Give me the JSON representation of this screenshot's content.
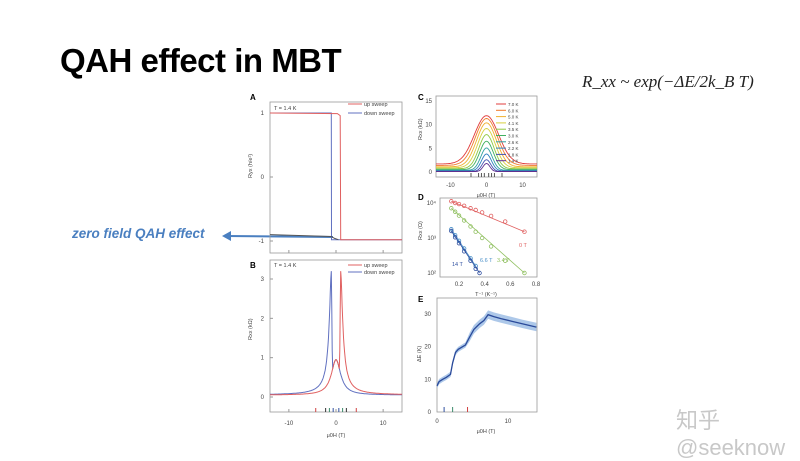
{
  "slide": {
    "title": "QAH effect in MBT",
    "formula": "R_xx ~ exp(−ΔE/2k_B T)",
    "annotation": "zero field QAH effect",
    "watermark": "知乎 @seeknow"
  },
  "chart_data": [
    {
      "panel": "A",
      "type": "line",
      "annotation": "T = 1.4 K",
      "ylabel": "Ryx (h/e²)",
      "xlabel": "μ0H (T)",
      "xlim": [
        -14,
        14
      ],
      "ylim": [
        -1.15,
        1.15
      ],
      "yticks": [
        "1",
        "0",
        "-1"
      ],
      "legend": [
        "up sweep",
        "down sweep"
      ],
      "legend_placement": "top-right",
      "series": [
        {
          "name": "up sweep",
          "color": "#e06060",
          "switch_field": 1.0
        },
        {
          "name": "down sweep",
          "color": "#6070c0",
          "switch_field": -1.0
        }
      ]
    },
    {
      "panel": "B",
      "type": "line",
      "annotation": "T = 1.4 K",
      "ylabel": "Rxx (kΩ)",
      "xlabel": "μ0H (T)",
      "xlim": [
        -14,
        14
      ],
      "ylim": [
        -0.4,
        3.4
      ],
      "yticks": [
        "3",
        "2",
        "1",
        "0"
      ],
      "xticks": [
        "-10",
        "0",
        "10"
      ],
      "legend": [
        "up sweep",
        "down sweep"
      ],
      "series": [
        {
          "name": "up sweep",
          "color": "#e06060",
          "peak_field": 1.0,
          "peak": 3.2
        },
        {
          "name": "down sweep",
          "color": "#6070c0",
          "peak_field": -1.0,
          "peak": 3.2
        }
      ]
    },
    {
      "panel": "C",
      "type": "line",
      "ylabel": "Rxx (kΩ)",
      "xlabel": "μ0H (T)",
      "xlim": [
        -14,
        14
      ],
      "ylim": [
        -1,
        15
      ],
      "yticks": [
        "15",
        "10",
        "5",
        "0"
      ],
      "xticks": [
        "-10",
        "0",
        "10"
      ],
      "series": [
        {
          "name": "7.0 K",
          "color": "#e03c3c",
          "peak": 11.9,
          "base": 1.7,
          "width": 3.2
        },
        {
          "name": "6.0 K",
          "color": "#f07a2a",
          "peak": 11.3,
          "base": 1.4,
          "width": 2.9
        },
        {
          "name": "5.0 K",
          "color": "#f0b030",
          "peak": 10.4,
          "base": 1.1,
          "width": 2.6
        },
        {
          "name": "4.1 K",
          "color": "#d8d040",
          "peak": 9.2,
          "base": 0.9,
          "width": 2.3
        },
        {
          "name": "3.5 K",
          "color": "#90c840",
          "peak": 7.9,
          "base": 0.7,
          "width": 2.0
        },
        {
          "name": "3.0 K",
          "color": "#40b060",
          "peak": 6.5,
          "base": 0.5,
          "width": 1.8
        },
        {
          "name": "2.6 K",
          "color": "#30a0a0",
          "peak": 5.1,
          "base": 0.35,
          "width": 1.5
        },
        {
          "name": "2.2 K",
          "color": "#3080c0",
          "peak": 3.8,
          "base": 0.25,
          "width": 1.3
        },
        {
          "name": "1.8 K",
          "color": "#4050b0",
          "peak": 2.6,
          "base": 0.15,
          "width": 1.1
        },
        {
          "name": "1.4 K",
          "color": "#603090",
          "peak": 1.8,
          "base": 0.1,
          "width": 0.9
        }
      ]
    },
    {
      "panel": "D",
      "type": "scatter",
      "ylabel": "Rxx (Ω)",
      "xlabel": "T⁻¹ (K⁻¹)",
      "xlim": [
        0.05,
        0.8
      ],
      "ylim_log10": [
        2,
        4.1
      ],
      "yticks": [
        "10⁴",
        "10³",
        "10²"
      ],
      "xticks": [
        "0.2",
        "0.4",
        "0.6",
        "0.8"
      ],
      "series": [
        {
          "name": "0 T",
          "color": "#e06060",
          "x": [
            0.14,
            0.17,
            0.2,
            0.24,
            0.29,
            0.33,
            0.38,
            0.45,
            0.56,
            0.71
          ],
          "log10y": [
            4.05,
            4.0,
            3.97,
            3.92,
            3.85,
            3.8,
            3.73,
            3.63,
            3.47,
            3.18
          ]
        },
        {
          "name": "3.4 T",
          "color": "#90c060",
          "x": [
            0.14,
            0.17,
            0.2,
            0.24,
            0.29,
            0.33,
            0.38,
            0.45,
            0.56,
            0.71
          ],
          "log10y": [
            3.85,
            3.75,
            3.64,
            3.5,
            3.33,
            3.18,
            3.0,
            2.76,
            2.35,
            2.0
          ]
        },
        {
          "name": "6.6 T",
          "color": "#4a90c8",
          "x": [
            0.14,
            0.17,
            0.2,
            0.24,
            0.29,
            0.33
          ],
          "log10y": [
            3.25,
            3.08,
            2.92,
            2.7,
            2.42,
            2.2
          ]
        },
        {
          "name": "14 T",
          "color": "#3050a0",
          "x": [
            0.14,
            0.17,
            0.2,
            0.24,
            0.29,
            0.33,
            0.36
          ],
          "log10y": [
            3.2,
            3.02,
            2.85,
            2.62,
            2.35,
            2.12,
            2.0
          ]
        }
      ]
    },
    {
      "panel": "E",
      "type": "line",
      "ylabel": "ΔE (K)",
      "xlabel": "μ0H (T)",
      "xlim": [
        0,
        14
      ],
      "ylim": [
        0,
        35
      ],
      "yticks": [
        "30",
        "20",
        "10",
        "0"
      ],
      "xticks": [
        "0",
        "10"
      ],
      "series": [
        {
          "name": "ΔE",
          "color": "#2a4a9a",
          "band_color": "#8ab0e0",
          "x": [
            0,
            0.3,
            0.8,
            1.3,
            1.9,
            2.2,
            2.6,
            3.0,
            3.6,
            4.0,
            4.6,
            5.2,
            6.0,
            6.6,
            7.2,
            8.0,
            9.0,
            10.5,
            12,
            14
          ],
          "y": [
            8,
            9.3,
            10,
            10.6,
            11.5,
            15,
            18.2,
            19.2,
            20,
            20.5,
            23,
            25.3,
            27,
            28,
            29.8,
            29.2,
            28.6,
            27.8,
            27,
            26
          ]
        }
      ]
    }
  ],
  "panel_labels": [
    "A",
    "B",
    "C",
    "D",
    "E"
  ],
  "axis_texts": {
    "t_label": "T = 1.4 K",
    "up": "up sweep",
    "down": "down sweep",
    "mu0h": "μ0H (T)",
    "ryx": "Ryx (h/e²)",
    "rxx_k": "Rxx (kΩ)",
    "rxx_o": "Rxx (Ω)",
    "tinv": "T⁻¹ (K⁻¹)",
    "de": "ΔE (K)"
  }
}
